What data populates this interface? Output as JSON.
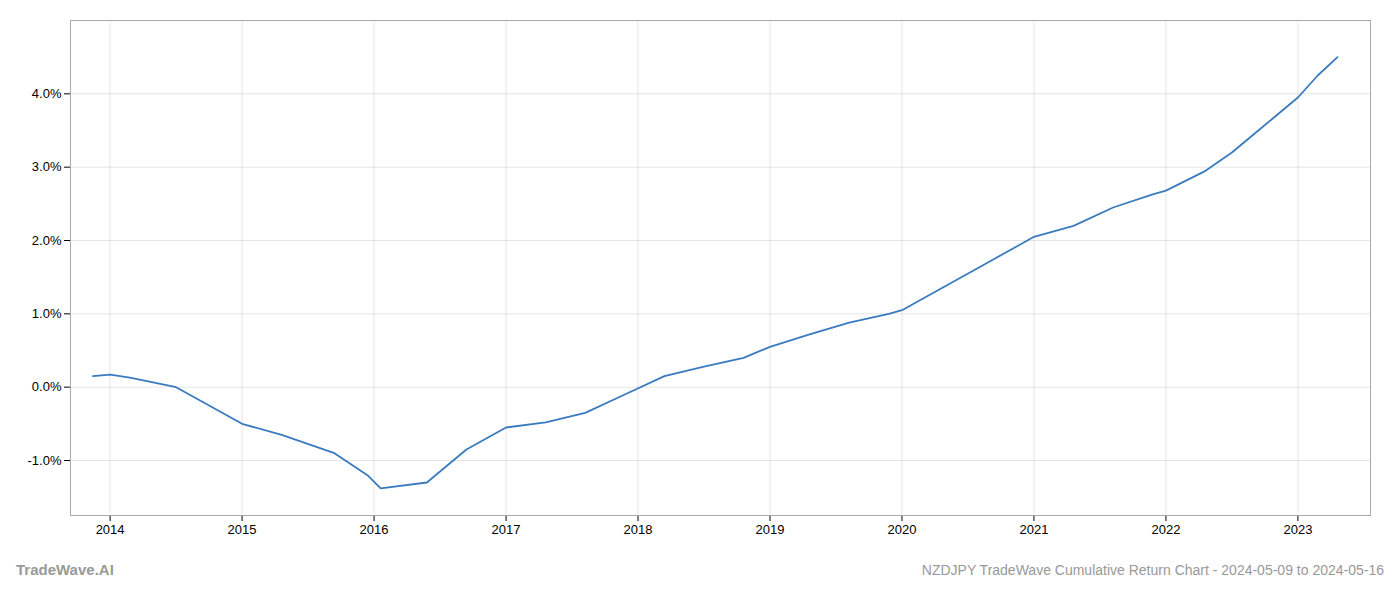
{
  "chart_data": {
    "type": "line",
    "title": "NZDJPY TradeWave Cumulative Return Chart - 2024-05-09 to 2024-05-16",
    "annotations": [
      "TradeWave.AI"
    ],
    "x": [
      2013.87,
      2014.0,
      2014.15,
      2014.5,
      2015.0,
      2015.3,
      2015.7,
      2015.95,
      2016.05,
      2016.4,
      2016.7,
      2017.0,
      2017.3,
      2017.6,
      2017.9,
      2018.2,
      2018.5,
      2018.8,
      2019.0,
      2019.3,
      2019.6,
      2019.9,
      2020.0,
      2020.3,
      2020.6,
      2020.9,
      2021.0,
      2021.3,
      2021.6,
      2021.9,
      2022.0,
      2022.3,
      2022.5,
      2022.7,
      2022.9,
      2023.0,
      2023.15,
      2023.3
    ],
    "values": [
      0.15,
      0.17,
      0.13,
      0.0,
      -0.5,
      -0.65,
      -0.9,
      -1.2,
      -1.38,
      -1.3,
      -0.85,
      -0.55,
      -0.48,
      -0.35,
      -0.1,
      0.15,
      0.28,
      0.4,
      0.55,
      0.72,
      0.88,
      1.0,
      1.05,
      1.35,
      1.65,
      1.95,
      2.05,
      2.2,
      2.45,
      2.63,
      2.68,
      2.95,
      3.2,
      3.5,
      3.8,
      3.95,
      4.25,
      4.5
    ],
    "color": "#3a7bbf",
    "xlim": [
      2013.7,
      2023.55
    ],
    "xticks": [
      2014,
      2015,
      2016,
      2017,
      2018,
      2019,
      2020,
      2021,
      2022,
      2023
    ],
    "ylim": [
      -1.75,
      5.0
    ],
    "yticks": [
      {
        "value": -1.0,
        "label": "-1.0%"
      },
      {
        "value": 0.0,
        "label": "0.0%"
      },
      {
        "value": 1.0,
        "label": "1.0%"
      },
      {
        "value": 2.0,
        "label": "2.0%"
      },
      {
        "value": 3.0,
        "label": "3.0%"
      },
      {
        "value": 4.0,
        "label": "4.0%"
      }
    ],
    "grid": true
  }
}
